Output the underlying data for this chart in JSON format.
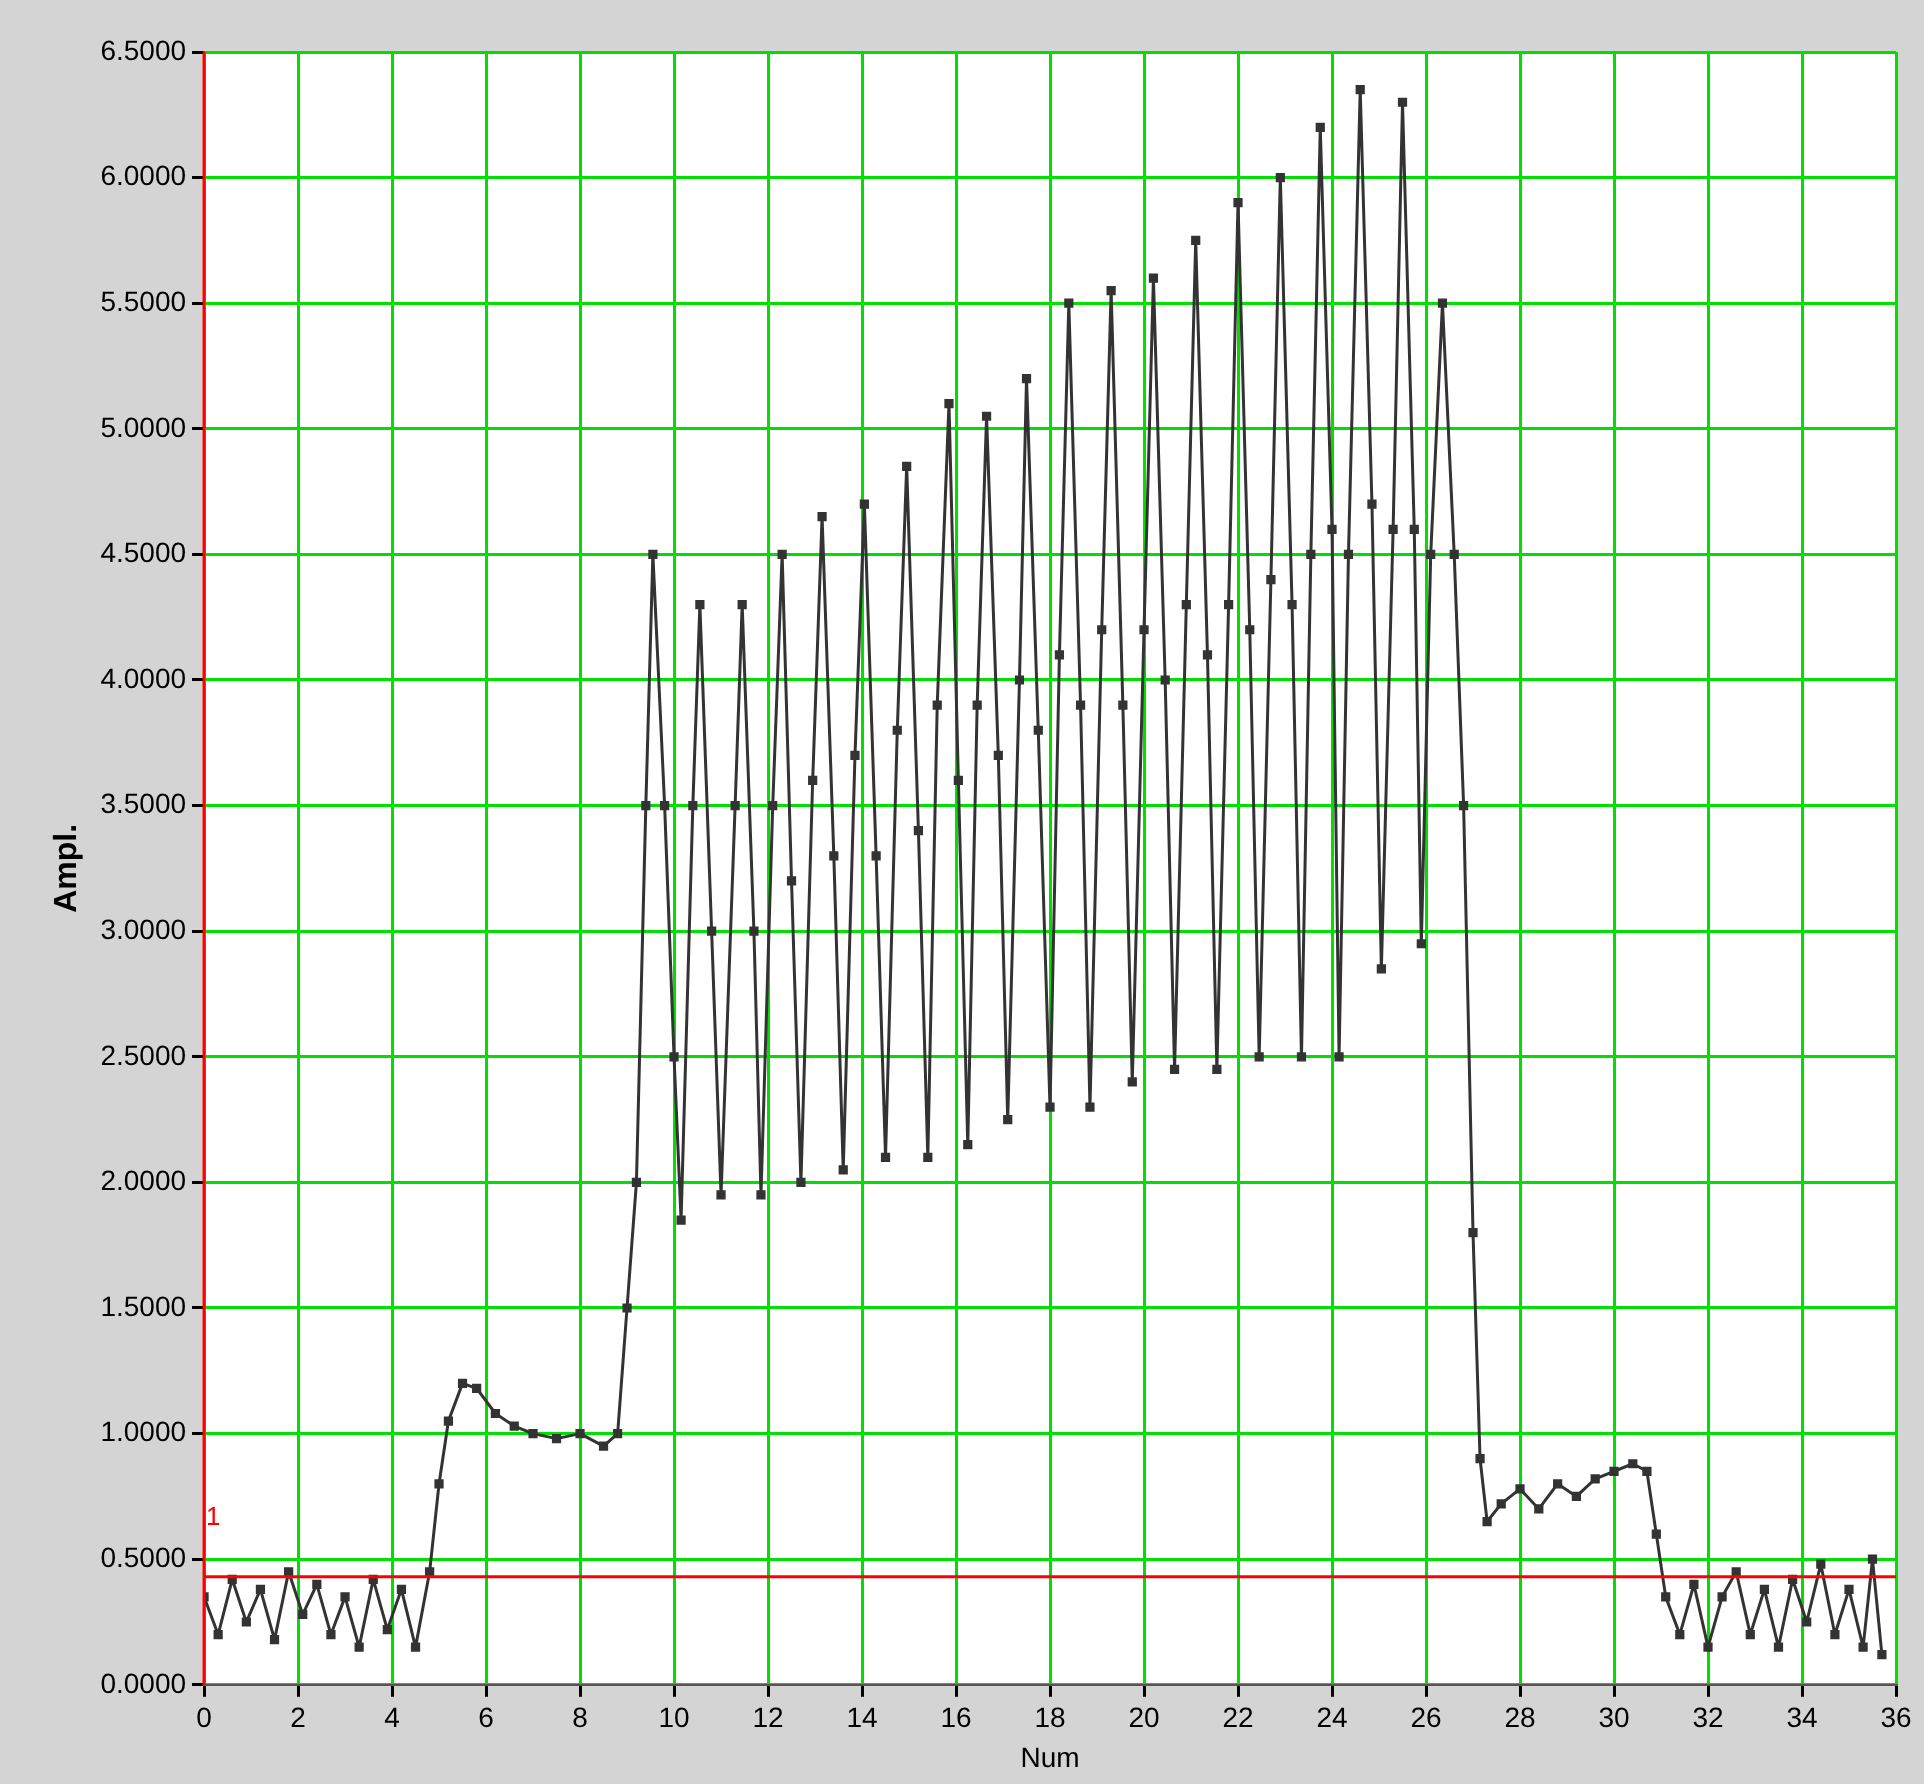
{
  "chart_data": {
    "type": "line",
    "xlabel": "Num",
    "ylabel": "Ampl.",
    "marker": "square",
    "grid": true,
    "legend": false,
    "xlim": [
      0,
      36
    ],
    "xticks": [
      0,
      2,
      4,
      6,
      8,
      10,
      12,
      14,
      16,
      18,
      20,
      22,
      24,
      26,
      28,
      30,
      32,
      34,
      36
    ],
    "ylim": [
      0,
      6.5
    ],
    "yticks": [
      {
        "value": 0,
        "label": "0.0000"
      },
      {
        "value": 0.5,
        "label": "0.5000"
      },
      {
        "value": 1,
        "label": "1.0000"
      },
      {
        "value": 1.5,
        "label": "1.5000"
      },
      {
        "value": 2,
        "label": "2.0000"
      },
      {
        "value": 2.5,
        "label": "2.5000"
      },
      {
        "value": 3,
        "label": "3.0000"
      },
      {
        "value": 3.5,
        "label": "3.5000"
      },
      {
        "value": 4,
        "label": "4.0000"
      },
      {
        "value": 4.5,
        "label": "4.5000"
      },
      {
        "value": 5,
        "label": "5.0000"
      },
      {
        "value": 5.5,
        "label": "5.5000"
      },
      {
        "value": 6,
        "label": "6.0000"
      },
      {
        "value": 6.5,
        "label": "6.5000"
      }
    ],
    "annotations": [
      "1"
    ],
    "ref_lines": [
      {
        "axis": "x",
        "value": 0,
        "color": "#ff0000"
      },
      {
        "axis": "y",
        "value": 0.43,
        "color": "#ff0000"
      }
    ],
    "series": [
      {
        "color": "#333333",
        "x": [
          0,
          0.3,
          0.6,
          0.9,
          1.2,
          1.5,
          1.8,
          2.1,
          2.4,
          2.7,
          3.0,
          3.3,
          3.6,
          3.9,
          4.2,
          4.5,
          4.8,
          5.0,
          5.2,
          5.5,
          5.8,
          6.2,
          6.6,
          7.0,
          7.5,
          8.0,
          8.5,
          8.8,
          9.0,
          9.2,
          9.4,
          9.55,
          9.8,
          10.0,
          10.15,
          10.4,
          10.55,
          10.8,
          11.0,
          11.3,
          11.45,
          11.7,
          11.85,
          12.1,
          12.3,
          12.5,
          12.7,
          12.95,
          13.15,
          13.4,
          13.6,
          13.85,
          14.05,
          14.3,
          14.5,
          14.75,
          14.95,
          15.2,
          15.4,
          15.6,
          15.85,
          16.05,
          16.25,
          16.45,
          16.65,
          16.9,
          17.1,
          17.35,
          17.5,
          17.75,
          18.0,
          18.2,
          18.4,
          18.65,
          18.85,
          19.1,
          19.3,
          19.55,
          19.75,
          20.0,
          20.2,
          20.45,
          20.65,
          20.9,
          21.1,
          21.35,
          21.55,
          21.8,
          22.0,
          22.25,
          22.45,
          22.7,
          22.9,
          23.15,
          23.35,
          23.55,
          23.75,
          24.0,
          24.15,
          24.35,
          24.6,
          24.85,
          25.05,
          25.3,
          25.5,
          25.75,
          25.9,
          26.1,
          26.35,
          26.6,
          26.8,
          27.0,
          27.15,
          27.3,
          27.6,
          28.0,
          28.4,
          28.8,
          29.2,
          29.6,
          30.0,
          30.4,
          30.7,
          30.9,
          31.1,
          31.4,
          31.7,
          32.0,
          32.3,
          32.6,
          32.9,
          33.2,
          33.5,
          33.8,
          34.1,
          34.4,
          34.7,
          35.0,
          35.3,
          35.5,
          35.7
        ],
        "values": [
          0.35,
          0.2,
          0.42,
          0.25,
          0.38,
          0.18,
          0.45,
          0.28,
          0.4,
          0.2,
          0.35,
          0.15,
          0.42,
          0.22,
          0.38,
          0.15,
          0.45,
          0.8,
          1.05,
          1.2,
          1.18,
          1.08,
          1.03,
          1.0,
          0.98,
          1.0,
          0.95,
          1.0,
          1.5,
          2.0,
          3.5,
          4.5,
          3.5,
          2.5,
          1.85,
          3.5,
          4.3,
          3.0,
          1.95,
          3.5,
          4.3,
          3.0,
          1.95,
          3.5,
          4.5,
          3.2,
          2.0,
          3.6,
          4.65,
          3.3,
          2.05,
          3.7,
          4.7,
          3.3,
          2.1,
          3.8,
          4.85,
          3.4,
          2.1,
          3.9,
          5.1,
          3.6,
          2.15,
          3.9,
          5.05,
          3.7,
          2.25,
          4.0,
          5.2,
          3.8,
          2.3,
          4.1,
          5.5,
          3.9,
          2.3,
          4.2,
          5.55,
          3.9,
          2.4,
          4.2,
          5.6,
          4.0,
          2.45,
          4.3,
          5.75,
          4.1,
          2.45,
          4.3,
          5.9,
          4.2,
          2.5,
          4.4,
          6.0,
          4.3,
          2.5,
          4.5,
          6.2,
          4.6,
          2.5,
          4.5,
          6.35,
          4.7,
          2.85,
          4.6,
          6.3,
          4.6,
          2.95,
          4.5,
          5.5,
          4.5,
          3.5,
          1.8,
          0.9,
          0.65,
          0.72,
          0.78,
          0.7,
          0.8,
          0.75,
          0.82,
          0.85,
          0.88,
          0.85,
          0.6,
          0.35,
          0.2,
          0.4,
          0.15,
          0.35,
          0.45,
          0.2,
          0.38,
          0.15,
          0.42,
          0.25,
          0.48,
          0.2,
          0.38,
          0.15,
          0.5,
          0.12
        ]
      }
    ]
  }
}
